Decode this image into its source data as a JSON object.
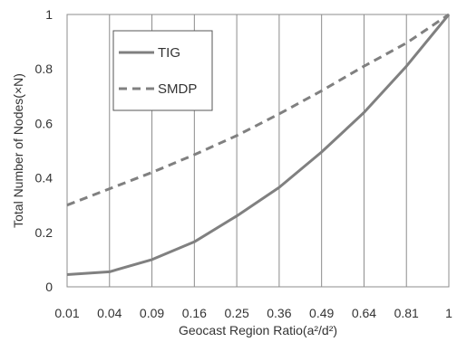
{
  "chart_data": {
    "type": "line",
    "title": "",
    "xlabel": "Geocast Region Ratio(a²/d²)",
    "ylabel": "Total Number of Nodes(×N)",
    "x": [
      "0.01",
      "0.04",
      "0.09",
      "0.16",
      "0.25",
      "0.36",
      "0.49",
      "0.64",
      "0.81",
      "1"
    ],
    "ylim": [
      0,
      1
    ],
    "yticks": [
      "0",
      "0.2",
      "0.4",
      "0.6",
      "0.8",
      "1"
    ],
    "grid": {
      "vertical": true,
      "horizontal": false
    },
    "legend": {
      "position": "top-left"
    },
    "series": [
      {
        "name": "TIG",
        "style": "solid",
        "color": "#808080",
        "values": [
          0.045,
          0.055,
          0.1,
          0.165,
          0.26,
          0.365,
          0.495,
          0.64,
          0.81,
          1.0
        ]
      },
      {
        "name": "SMDP",
        "style": "dashed",
        "color": "#808080",
        "values": [
          0.3,
          0.36,
          0.42,
          0.485,
          0.555,
          0.635,
          0.72,
          0.81,
          0.895,
          1.0
        ]
      }
    ]
  }
}
